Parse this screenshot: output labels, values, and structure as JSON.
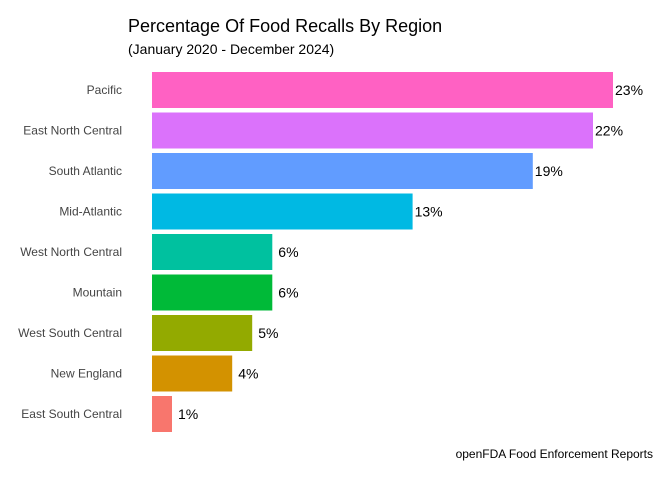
{
  "chart_data": {
    "type": "bar",
    "orientation": "horizontal",
    "title": "Percentage Of Food Recalls By Region",
    "subtitle": "(January 2020 - December 2024)",
    "caption": "openFDA Food Enforcement Reports",
    "xlabel": "",
    "ylabel": "",
    "grid": false,
    "legend": "none",
    "xlim": [
      0,
      23
    ],
    "categories": [
      "Pacific",
      "East North Central",
      "South Atlantic",
      "Mid-Atlantic",
      "West North Central",
      "Mountain",
      "West South Central",
      "New England",
      "East South Central"
    ],
    "values": [
      23,
      22,
      19,
      13,
      6,
      6,
      5,
      4,
      1
    ],
    "value_labels": [
      "23%",
      "22%",
      "19%",
      "13%",
      "6%",
      "6%",
      "5%",
      "4%",
      "1%"
    ],
    "colors": [
      "#FF61C3",
      "#DB72FB",
      "#619CFF",
      "#00B9E3",
      "#00C19F",
      "#00BA38",
      "#93AA00",
      "#D39200",
      "#F8766D"
    ]
  }
}
